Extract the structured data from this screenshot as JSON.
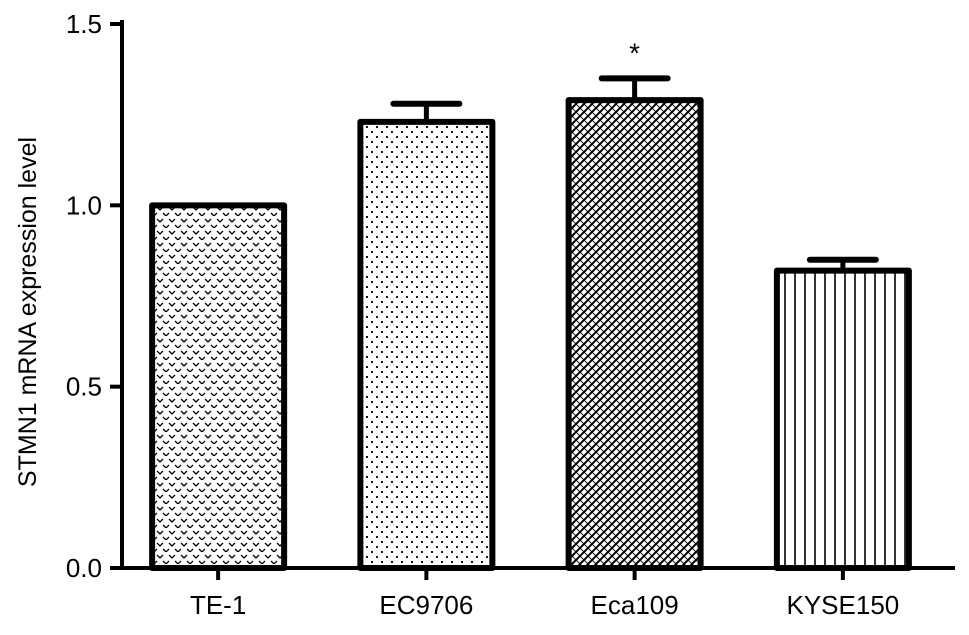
{
  "chart_data": {
    "type": "bar",
    "title": "",
    "xlabel": "",
    "ylabel": "STMN1 mRNA expression level",
    "categories": [
      "TE-1",
      "EC9706",
      "Eca109",
      "KYSE150"
    ],
    "values": [
      1.0,
      1.23,
      1.29,
      0.82
    ],
    "errors": [
      0.0,
      0.05,
      0.06,
      0.03
    ],
    "patterns": [
      "chevron",
      "dots",
      "diagonal-hatch",
      "vertical-lines"
    ],
    "annotations": [
      "",
      "",
      "*",
      ""
    ],
    "ylim": [
      0,
      1.5
    ],
    "yticks": [
      0.0,
      0.5,
      1.0,
      1.5
    ],
    "ytick_labels": [
      "0.0",
      "0.5",
      "1.0",
      "1.5"
    ],
    "grid": false,
    "legend": "none",
    "colors": {
      "bar_fill": "#ffffff",
      "bar_stroke": "#000000",
      "axis": "#000000",
      "pattern_ink": "#000000"
    }
  }
}
